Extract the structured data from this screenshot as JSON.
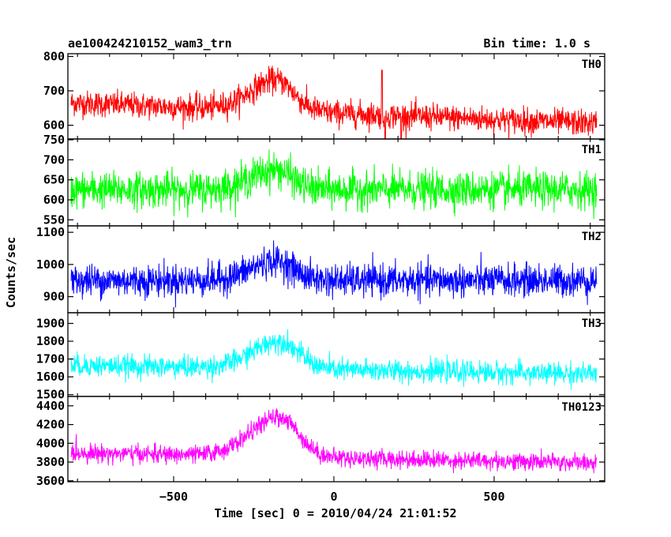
{
  "chart_data": {
    "type": "line",
    "title": "ae100424210152_wam3_trn",
    "bin_time_label": "Bin time: 1.0 s",
    "xlabel": "Time [sec] 0 = 2010/04/24 21:01:52",
    "ylabel": "Counts/sec",
    "xlim": [
      -830,
      845
    ],
    "x_ticks": [
      -500,
      0,
      500
    ],
    "x_tick_labels": [
      "−500",
      "0",
      "500"
    ],
    "grid": false,
    "x_start": -820,
    "x_end": 820,
    "x_step": 1.0,
    "panels": [
      {
        "name": "TH0",
        "color": "#ff0000",
        "ylim": [
          560,
          808
        ],
        "yticks": [
          600,
          700,
          800
        ],
        "baseline_start": 665,
        "baseline_end": 605,
        "peak_time": -180,
        "peak_amplitude": 90,
        "peak_rise": 80,
        "peak_decay": 55,
        "noise": 34,
        "spikes": [
          {
            "x": 150,
            "y": 760
          },
          {
            "x": 210,
            "y": 540
          },
          {
            "x": 160,
            "y": 560
          }
        ]
      },
      {
        "name": "TH1",
        "color": "#00ff00",
        "ylim": [
          535,
          752
        ],
        "yticks": [
          550,
          600,
          650,
          700,
          750
        ],
        "baseline_start": 625,
        "baseline_end": 625,
        "peak_time": -180,
        "peak_amplitude": 50,
        "peak_rise": 80,
        "peak_decay": 50,
        "noise": 40,
        "spikes": []
      },
      {
        "name": "TH2",
        "color": "#0000ff",
        "ylim": [
          850,
          1120
        ],
        "yticks": [
          900,
          1000,
          1100
        ],
        "baseline_start": 950,
        "baseline_end": 950,
        "peak_time": -180,
        "peak_amplitude": 60,
        "peak_rise": 80,
        "peak_decay": 55,
        "noise": 45,
        "spikes": []
      },
      {
        "name": "TH3",
        "color": "#00ffff",
        "ylim": [
          1490,
          1960
        ],
        "yticks": [
          1500,
          1600,
          1700,
          1800,
          1900
        ],
        "baseline_start": 1665,
        "baseline_end": 1615,
        "peak_time": -170,
        "peak_amplitude": 155,
        "peak_rise": 85,
        "peak_decay": 60,
        "noise": 55,
        "spikes": []
      },
      {
        "name": "TH0123",
        "color": "#ff00ff",
        "ylim": [
          3590,
          4500
        ],
        "yticks": [
          3600,
          3800,
          4000,
          4200,
          4400
        ],
        "baseline_start": 3900,
        "baseline_end": 3790,
        "peak_time": -170,
        "peak_amplitude": 420,
        "peak_rise": 90,
        "peak_decay": 60,
        "noise": 85,
        "spikes": []
      }
    ]
  }
}
